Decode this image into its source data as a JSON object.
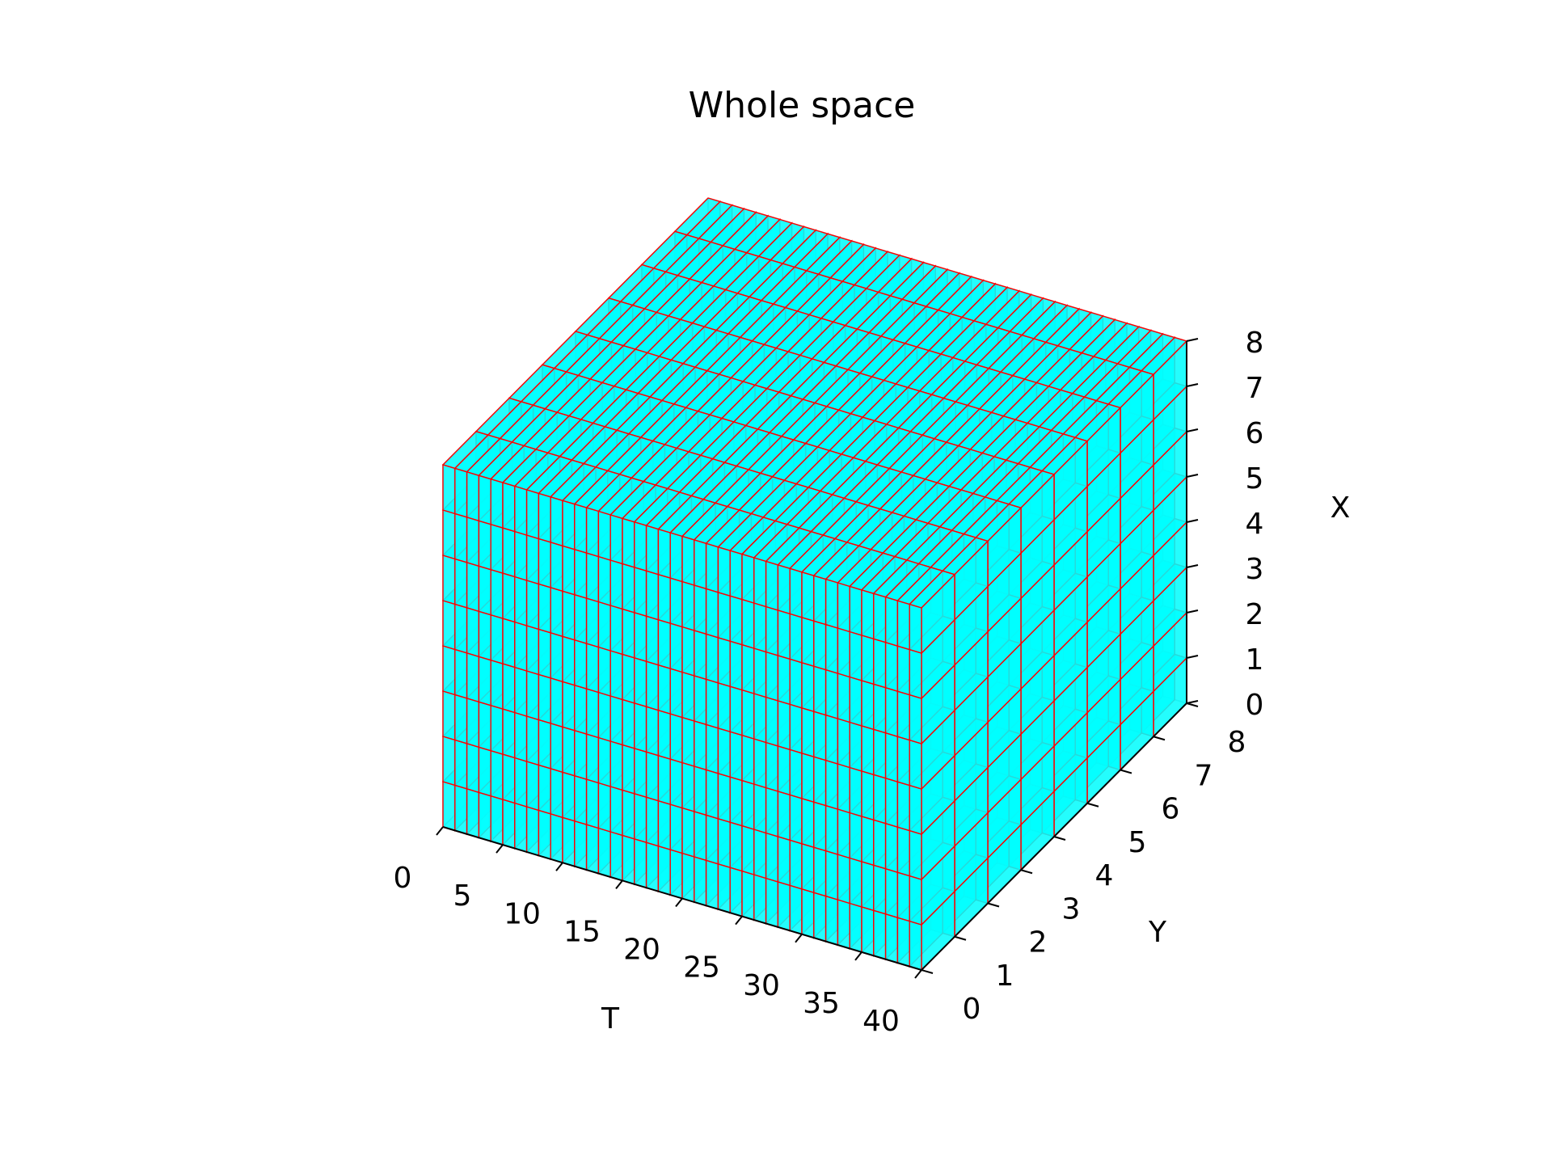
{
  "chart_data": {
    "type": "voxel-3d",
    "title": "Whole space",
    "axes": {
      "t": {
        "label": "T",
        "ticks": [
          0,
          5,
          10,
          15,
          20,
          25,
          30,
          35,
          40
        ],
        "range": [
          0,
          40
        ]
      },
      "y": {
        "label": "Y",
        "ticks": [
          0,
          1,
          2,
          3,
          4,
          5,
          6,
          7,
          8
        ],
        "range": [
          0,
          8
        ]
      },
      "x": {
        "label": "X",
        "ticks": [
          0,
          1,
          2,
          3,
          4,
          5,
          6,
          7,
          8
        ],
        "range": [
          0,
          8
        ]
      }
    },
    "grid": true,
    "voxel_face_color": "#00ffff",
    "voxel_edge_color": "#ff0000",
    "pane_color": "#f2f2f2",
    "grid_color": "#b0b0b0",
    "voxels_cover_range": {
      "t": [
        0,
        40
      ],
      "y": [
        0,
        8
      ],
      "x": [
        0,
        8
      ]
    }
  }
}
